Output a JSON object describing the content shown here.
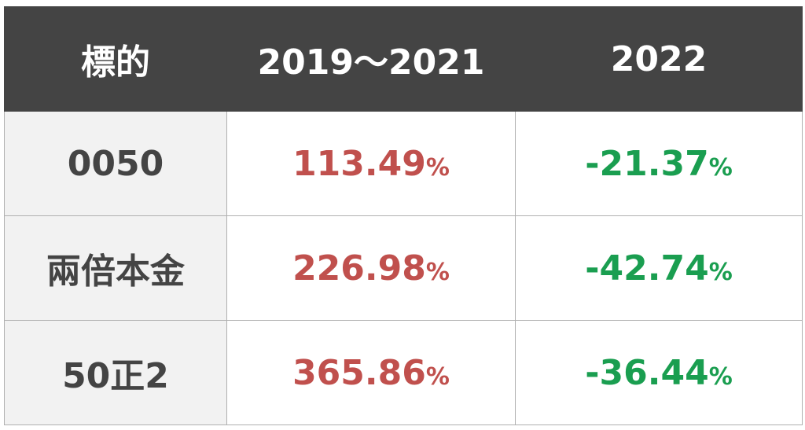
{
  "table": {
    "header": [
      "標的",
      "2019～2021",
      "2022"
    ],
    "rows": [
      {
        "name": "0050",
        "cells": [
          {
            "number": "113.49",
            "unit": "%"
          },
          {
            "number": "-21.37",
            "unit": "%"
          }
        ]
      },
      {
        "name": "兩倍本金",
        "cells": [
          {
            "number": "226.98",
            "unit": "%"
          },
          {
            "number": "-42.74",
            "unit": "%"
          }
        ]
      },
      {
        "name": "50正2",
        "cells": [
          {
            "number": "365.86",
            "unit": "%"
          },
          {
            "number": "-36.44",
            "unit": "%"
          }
        ]
      }
    ]
  }
}
